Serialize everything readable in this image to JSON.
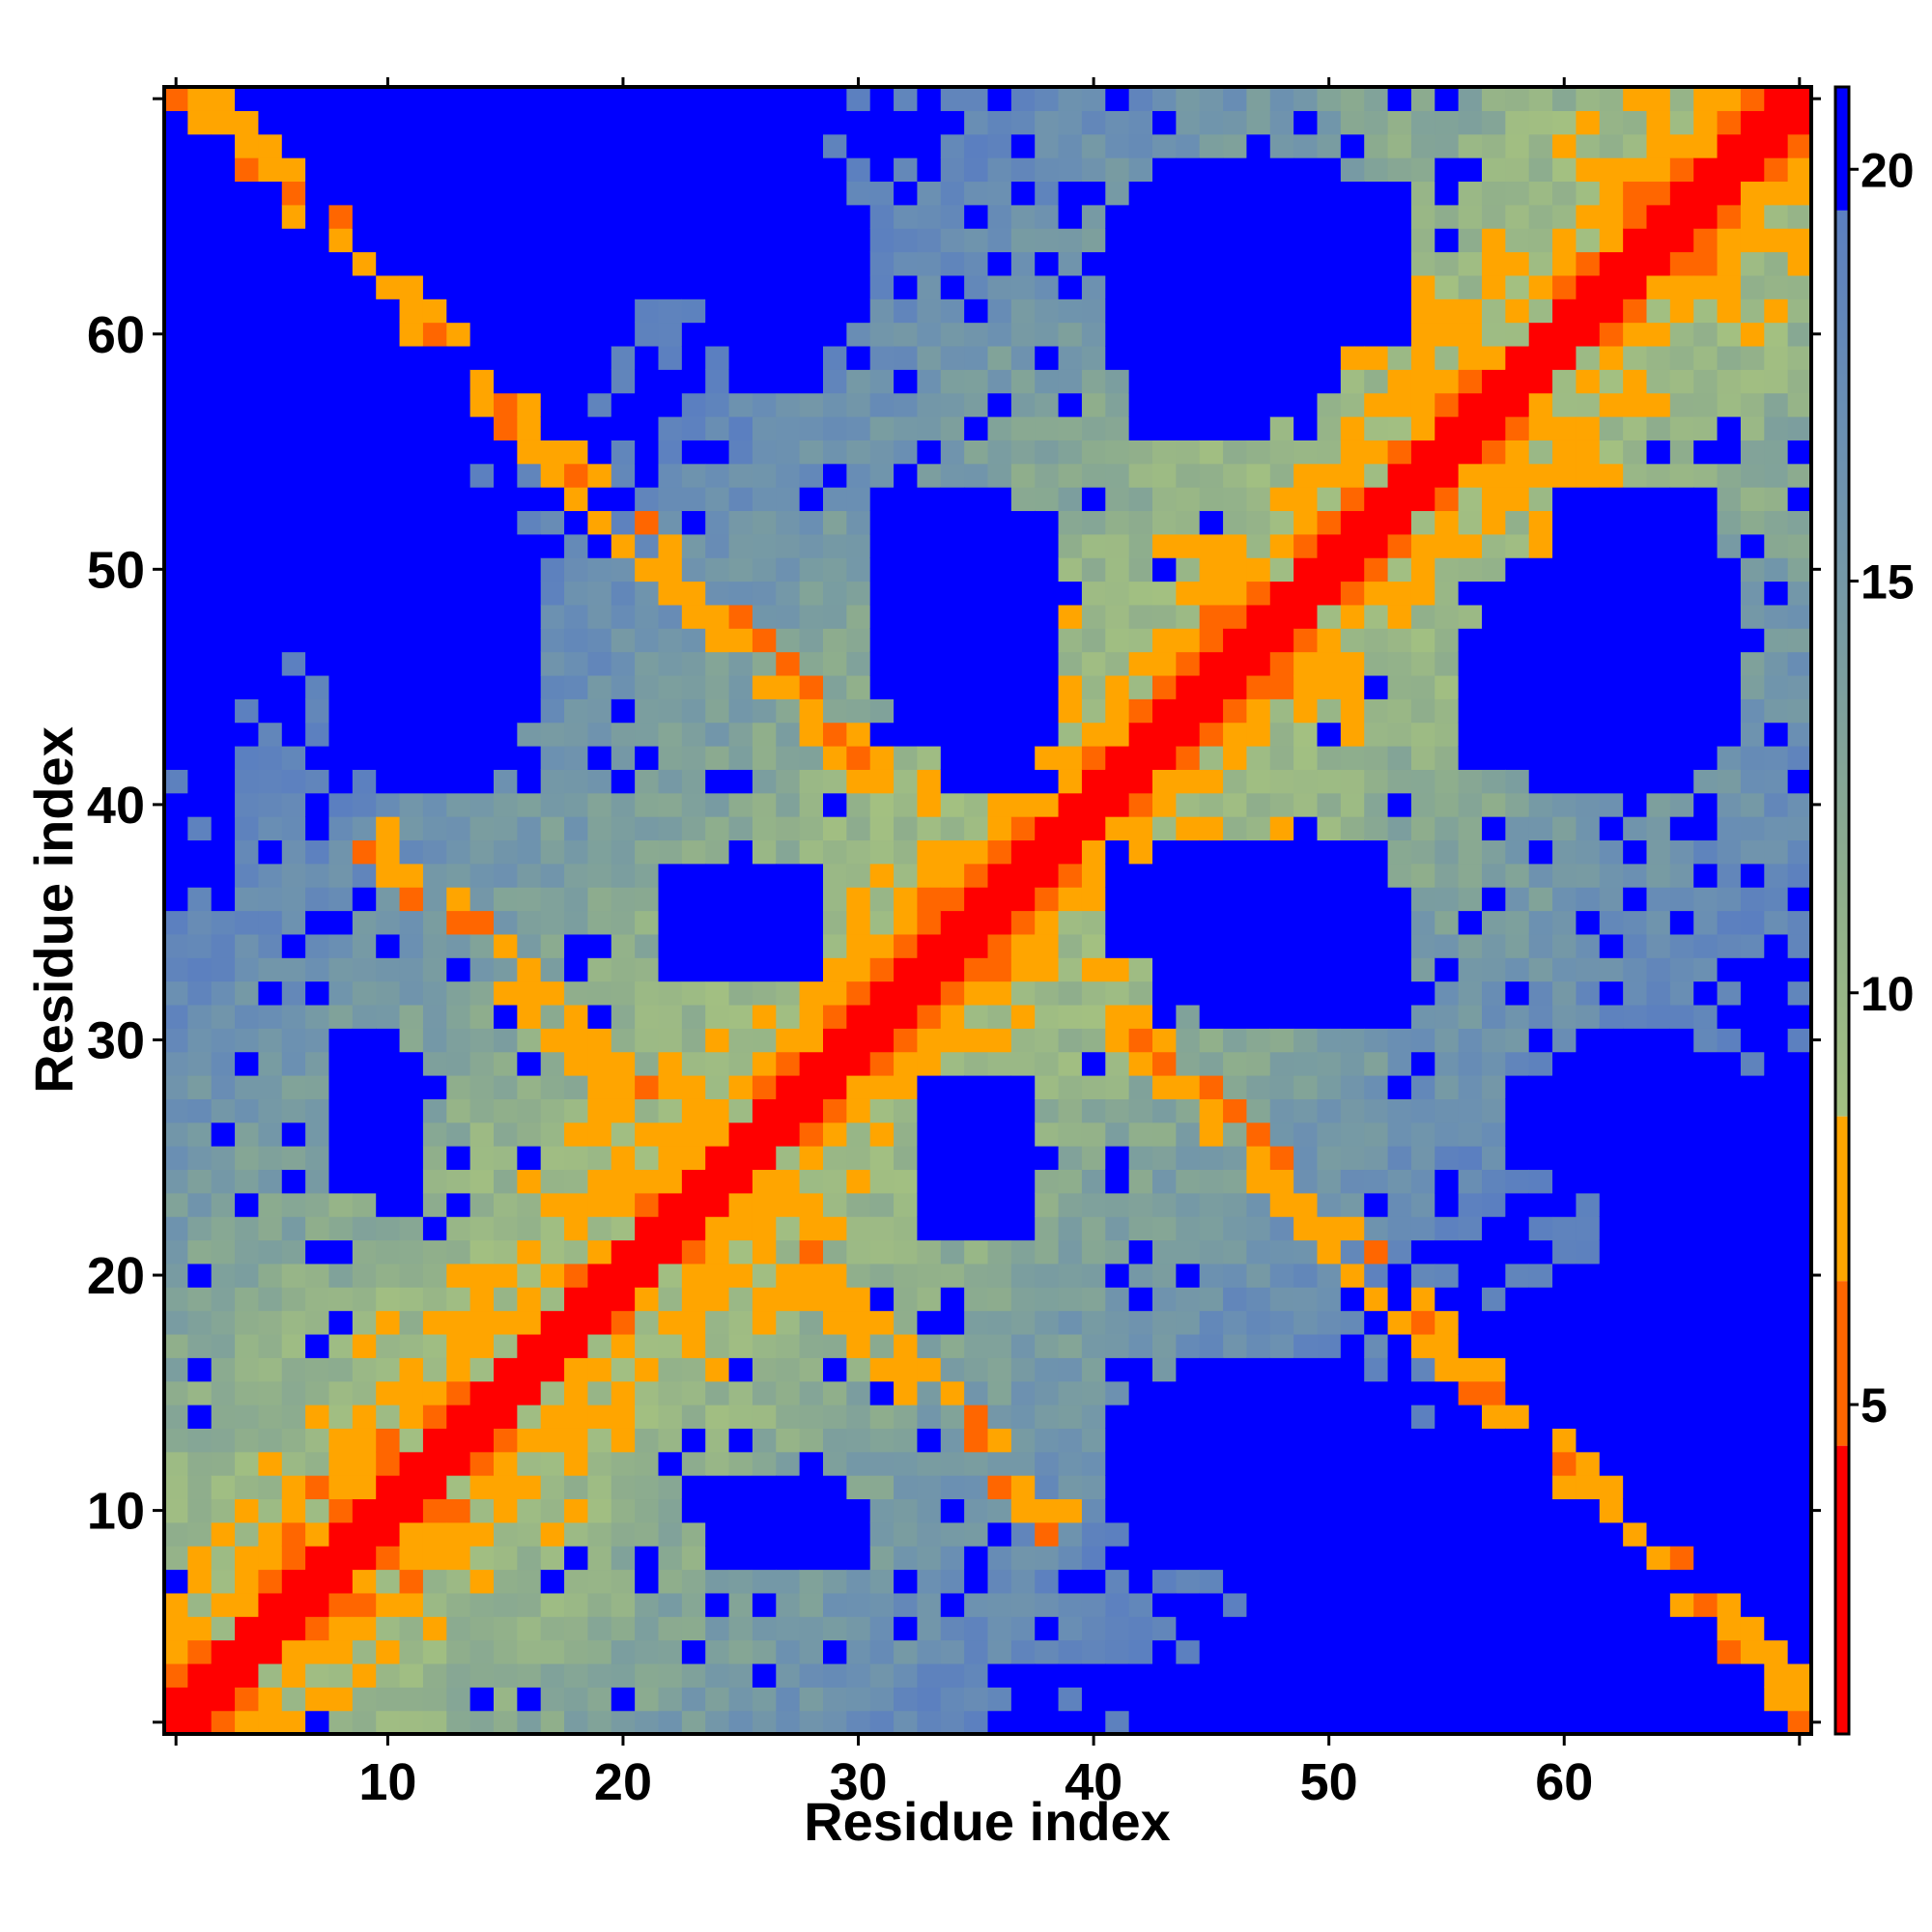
{
  "chart_data": {
    "type": "heatmap",
    "title": "",
    "xlabel": "Residue index",
    "ylabel": "Residue index",
    "n_residues": 70,
    "xlim": [
      1,
      70
    ],
    "ylim": [
      1,
      70
    ],
    "x_ticks": [
      "10",
      "20",
      "30",
      "40",
      "50",
      "60"
    ],
    "y_ticks": [
      "10",
      "20",
      "30",
      "40",
      "50",
      "60"
    ],
    "colorbar": {
      "range": [
        1,
        21
      ],
      "ticks": [
        "5",
        "10",
        "15",
        "20"
      ],
      "segments": [
        {
          "from": 1,
          "to": 4.5,
          "color": "#ff0000"
        },
        {
          "from": 4.5,
          "to": 6.5,
          "color": "#ff6600"
        },
        {
          "from": 6.5,
          "to": 8.5,
          "color": "#ffa500"
        },
        {
          "from": 8.5,
          "to": 19.5,
          "color": "#99b588"
        },
        {
          "from": 19.5,
          "to": 21,
          "color": "#0000ff"
        }
      ],
      "gradient": [
        "#a3c081",
        "#8fae8c",
        "#7a9da0",
        "#6b90b2",
        "#5b7fc0"
      ]
    },
    "grid": false,
    "legend": "colorbar-right",
    "value_encoding": "C-alpha distance map (Angstrom); diagonal red, near contacts orange, mid distances green-gray-blue, far contacts blue",
    "contact_blocks": [
      {
        "x": [
          8,
          16
        ],
        "y": [
          41,
          53
        ],
        "level": "far"
      },
      {
        "x": [
          34,
          38
        ],
        "y": [
          41,
          52
        ],
        "level": "far"
      },
      {
        "x": [
          60,
          66
        ],
        "y": [
          41,
          53
        ],
        "level": "far"
      },
      {
        "x": [
          43,
          50
        ],
        "y": [
          8,
          16
        ],
        "level": "far"
      },
      {
        "x": [
          43,
          53
        ],
        "y": [
          31,
          36
        ],
        "level": "far"
      },
      {
        "x": [
          22,
          28
        ],
        "y": [
          33,
          37
        ],
        "level": "far"
      },
      {
        "x": [
          33,
          36
        ],
        "y": [
          22,
          28
        ],
        "level": "far"
      },
      {
        "x": [
          8,
          11
        ],
        "y": [
          24,
          30
        ],
        "level": "far"
      },
      {
        "x": [
          60,
          65
        ],
        "y": [
          24,
          30
        ],
        "level": "far"
      },
      {
        "x": [
          25,
          29
        ],
        "y": [
          58,
          66
        ],
        "level": "far"
      },
      {
        "x": [
          42,
          50
        ],
        "y": [
          56,
          67
        ],
        "level": "far"
      },
      {
        "x": [
          8,
          16
        ],
        "y": [
          66,
          70
        ],
        "level": "far"
      },
      {
        "x": [
          23,
          29
        ],
        "y": [
          9,
          11
        ],
        "level": "far"
      }
    ]
  }
}
